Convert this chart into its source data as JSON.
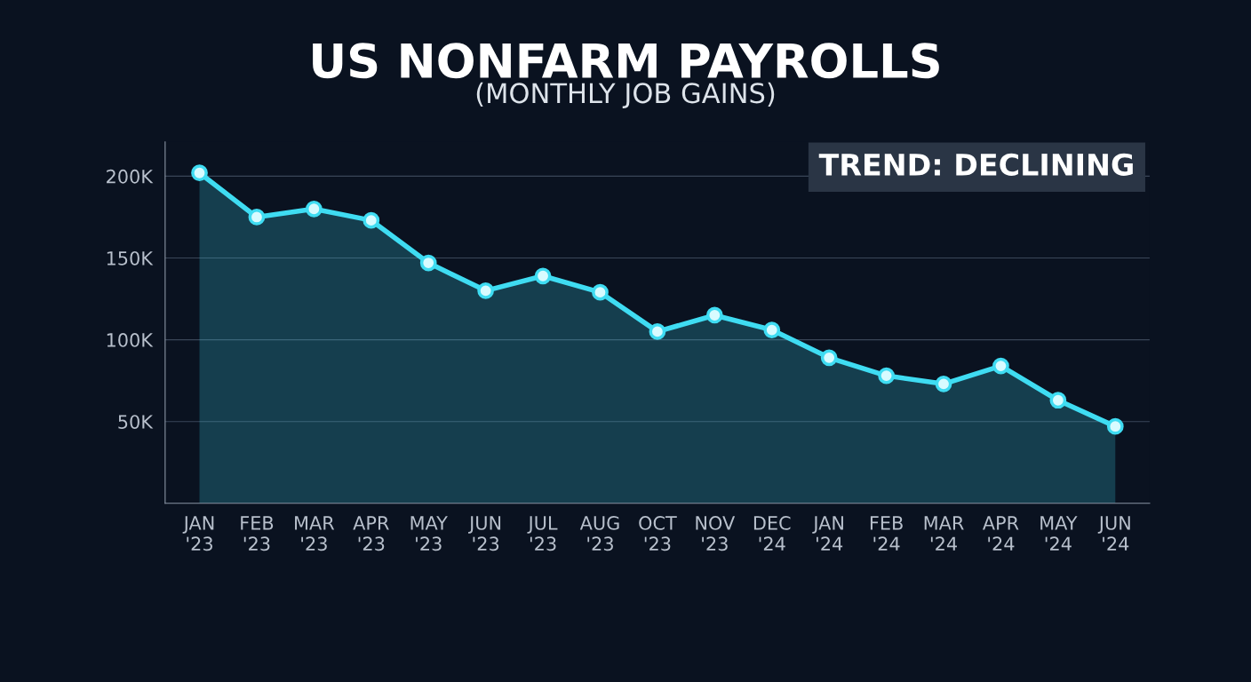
{
  "chart_data": {
    "type": "area",
    "title": "US NONFARM PAYROLLS",
    "subtitle": "(MONTHLY JOB GAINS)",
    "categories": [
      "JAN\n'23",
      "FEB\n'23",
      "MAR\n'23",
      "APR\n'23",
      "MAY\n'23",
      "JUN\n'23",
      "JUL\n'23",
      "AUG\n'23",
      "OCT\n'23",
      "NOV\n'23",
      "DEC\n'24",
      "JAN\n'24",
      "FEB\n'24",
      "MAR\n'24",
      "APR\n'24",
      "MAY\n'24",
      "JUN\n'24"
    ],
    "series": [
      {
        "color": "#3fdcf2",
        "values": [
          202000,
          175000,
          180000,
          173000,
          147000,
          130000,
          139000,
          129000,
          105000,
          115000,
          106000,
          89000,
          78000,
          73000,
          84000,
          63000,
          47000
        ]
      }
    ],
    "ylim": [
      0,
      221000
    ],
    "yticks": [
      {
        "value": 50000,
        "label": "50K"
      },
      {
        "value": 100000,
        "label": "100K"
      },
      {
        "value": 150000,
        "label": "150K"
      },
      {
        "value": 200000,
        "label": "200K"
      }
    ],
    "grid": "y",
    "marker": "circle",
    "line_style": "solid",
    "annotations": [
      "TREND: DECLINING"
    ]
  }
}
